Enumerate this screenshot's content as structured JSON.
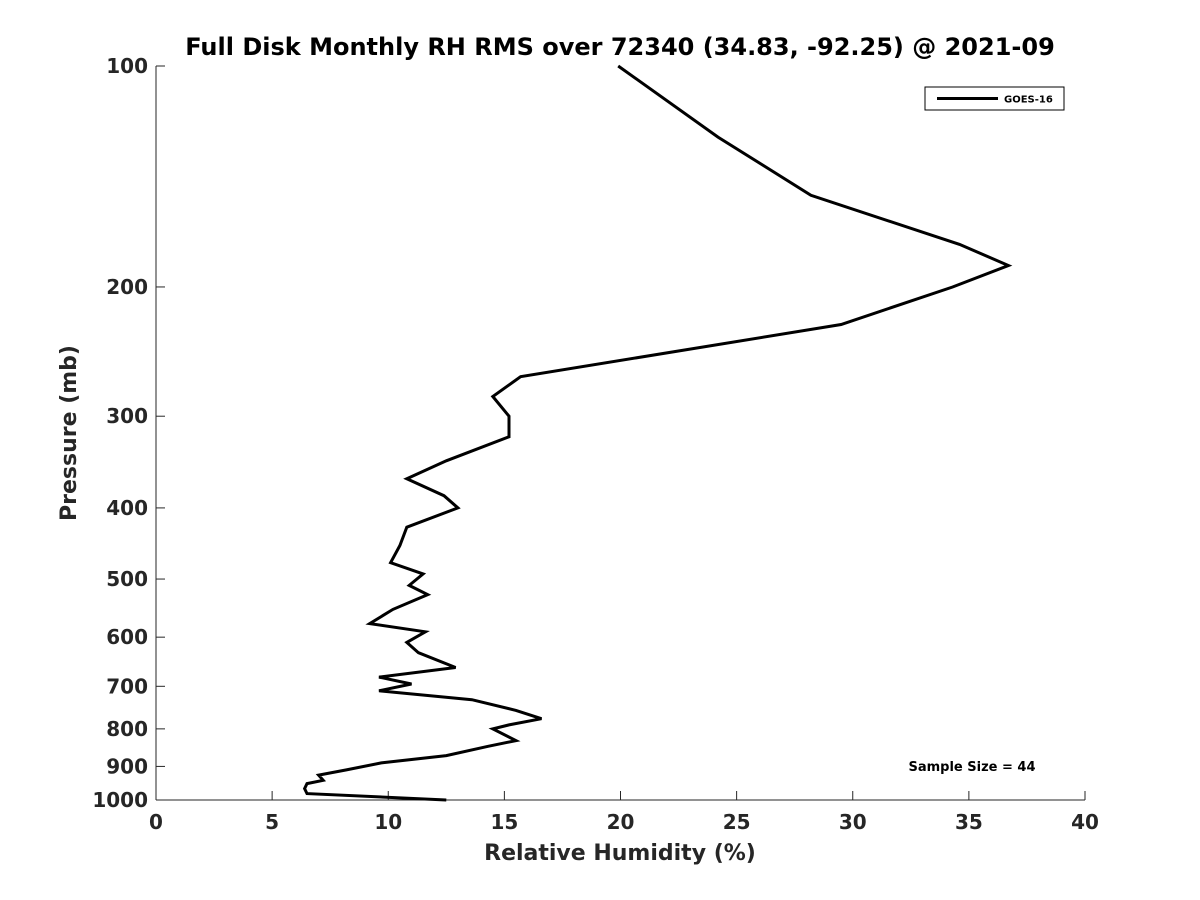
{
  "chart_data": {
    "type": "line",
    "title": "Full Disk Monthly RH RMS over 72340 (34.83, -92.25) @ 2021-09",
    "xlabel": "Relative Humidity (%)",
    "ylabel": "Pressure (mb)",
    "xlim": [
      0,
      40
    ],
    "ylim": [
      100,
      1000
    ],
    "y_scale": "log",
    "y_reversed": true,
    "x_ticks": [
      0,
      5,
      10,
      15,
      20,
      25,
      30,
      35,
      40
    ],
    "x_tick_labels": [
      "0",
      "5",
      "10",
      "15",
      "20",
      "25",
      "30",
      "35",
      "40"
    ],
    "y_ticks": [
      100,
      200,
      300,
      400,
      500,
      600,
      700,
      800,
      900,
      1000
    ],
    "y_tick_labels": [
      "100",
      "200",
      "300",
      "400",
      "500",
      "600",
      "700",
      "800",
      "900",
      "1000"
    ],
    "grid": false,
    "legend": {
      "position": "top-right",
      "entries": [
        "GOES-16"
      ]
    },
    "annotation": "Sample Size = 44",
    "series": [
      {
        "name": "GOES-16",
        "color": "#000000",
        "points": [
          [
            19.9,
            100
          ],
          [
            24.2,
            125
          ],
          [
            28.2,
            150
          ],
          [
            34.6,
            175
          ],
          [
            36.7,
            187
          ],
          [
            34.3,
            200
          ],
          [
            29.5,
            225
          ],
          [
            15.7,
            265
          ],
          [
            14.5,
            282
          ],
          [
            15.2,
            300
          ],
          [
            15.2,
            320
          ],
          [
            12.5,
            345
          ],
          [
            10.8,
            365
          ],
          [
            12.4,
            385
          ],
          [
            13.0,
            400
          ],
          [
            10.8,
            425
          ],
          [
            10.5,
            450
          ],
          [
            10.1,
            475
          ],
          [
            11.5,
            492
          ],
          [
            10.9,
            510
          ],
          [
            11.7,
            525
          ],
          [
            10.2,
            550
          ],
          [
            9.2,
            575
          ],
          [
            11.6,
            590
          ],
          [
            10.8,
            610
          ],
          [
            11.3,
            630
          ],
          [
            12.9,
            660
          ],
          [
            9.6,
            680
          ],
          [
            11.0,
            695
          ],
          [
            9.6,
            710
          ],
          [
            13.6,
            730
          ],
          [
            15.5,
            755
          ],
          [
            16.6,
            775
          ],
          [
            15.2,
            790
          ],
          [
            14.5,
            800
          ],
          [
            15.5,
            830
          ],
          [
            14.3,
            845
          ],
          [
            12.5,
            870
          ],
          [
            9.7,
            890
          ],
          [
            8.2,
            910
          ],
          [
            7.0,
            925
          ],
          [
            7.2,
            940
          ],
          [
            6.5,
            950
          ],
          [
            6.4,
            965
          ],
          [
            6.5,
            980
          ],
          [
            12.5,
            1000
          ]
        ]
      }
    ]
  }
}
